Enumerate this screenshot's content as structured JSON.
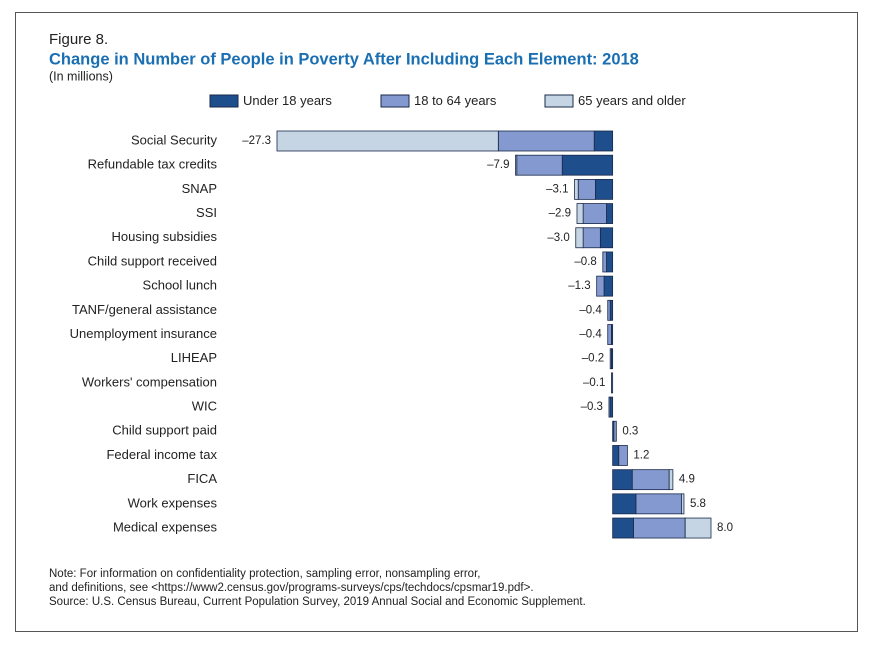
{
  "chart_data": {
    "type": "stacked-bar-horizontal",
    "figure_label": "Figure 8.",
    "title": "Change in Number of People in Poverty After Including Each Element: 2018",
    "subtitle": "(In millions)",
    "categories": [
      "Social Security",
      "Refundable tax credits",
      "SNAP",
      "SSI",
      "Housing subsidies",
      "Child support received",
      "School lunch",
      "TANF/general assistance",
      "Unemployment insurance",
      "LIHEAP",
      "Workers' compensation",
      "WIC",
      "Child support paid",
      "Federal income tax",
      "FICA",
      "Work expenses",
      "Medical expenses"
    ],
    "series": [
      {
        "name": "Under 18 years",
        "color": "#1f4e8c",
        "values": [
          -1.5,
          -4.1,
          -1.4,
          -0.5,
          -1.0,
          -0.5,
          -0.7,
          -0.2,
          -0.1,
          -0.1,
          0.0,
          -0.2,
          0.1,
          0.5,
          1.6,
          1.9,
          1.7
        ]
      },
      {
        "name": "18 to 64 years",
        "color": "#8399cf",
        "values": [
          -7.8,
          -3.7,
          -1.4,
          -1.9,
          -1.4,
          -0.3,
          -0.6,
          -0.2,
          -0.3,
          -0.1,
          -0.1,
          -0.1,
          0.2,
          0.7,
          3.0,
          3.7,
          4.2
        ]
      },
      {
        "name": "65 years and older",
        "color": "#c5d5e4",
        "values": [
          -18.0,
          -0.1,
          -0.3,
          -0.5,
          -0.6,
          0.0,
          0.0,
          0.0,
          0.0,
          0.0,
          0.0,
          0.0,
          0.0,
          0.0,
          0.3,
          0.2,
          2.1
        ]
      }
    ],
    "values": [
      -27.3,
      -7.9,
      -3.1,
      -2.9,
      -3.0,
      -0.8,
      -1.3,
      -0.4,
      -0.4,
      -0.2,
      -0.1,
      -0.3,
      0.3,
      1.2,
      4.9,
      5.8,
      8.0
    ],
    "value_labels": [
      "–27.3",
      "–7.9",
      "–3.1",
      "–2.9",
      "–3.0",
      "–0.8",
      "–1.3",
      "–0.4",
      "–0.4",
      "–0.2",
      "–0.1",
      "–0.3",
      "0.3",
      "1.2",
      "4.9",
      "5.8",
      "8.0"
    ],
    "notes": [
      "Note: For information on confidentiality protection, sampling error, nonsampling error,",
      "and definitions, see <https://www2.census.gov/programs-surveys/cps/techdocs/cpsmar19.pdf>.",
      "Source: U.S. Census Bureau, Current Population Survey, 2019 Annual Social and Economic Supplement."
    ]
  }
}
